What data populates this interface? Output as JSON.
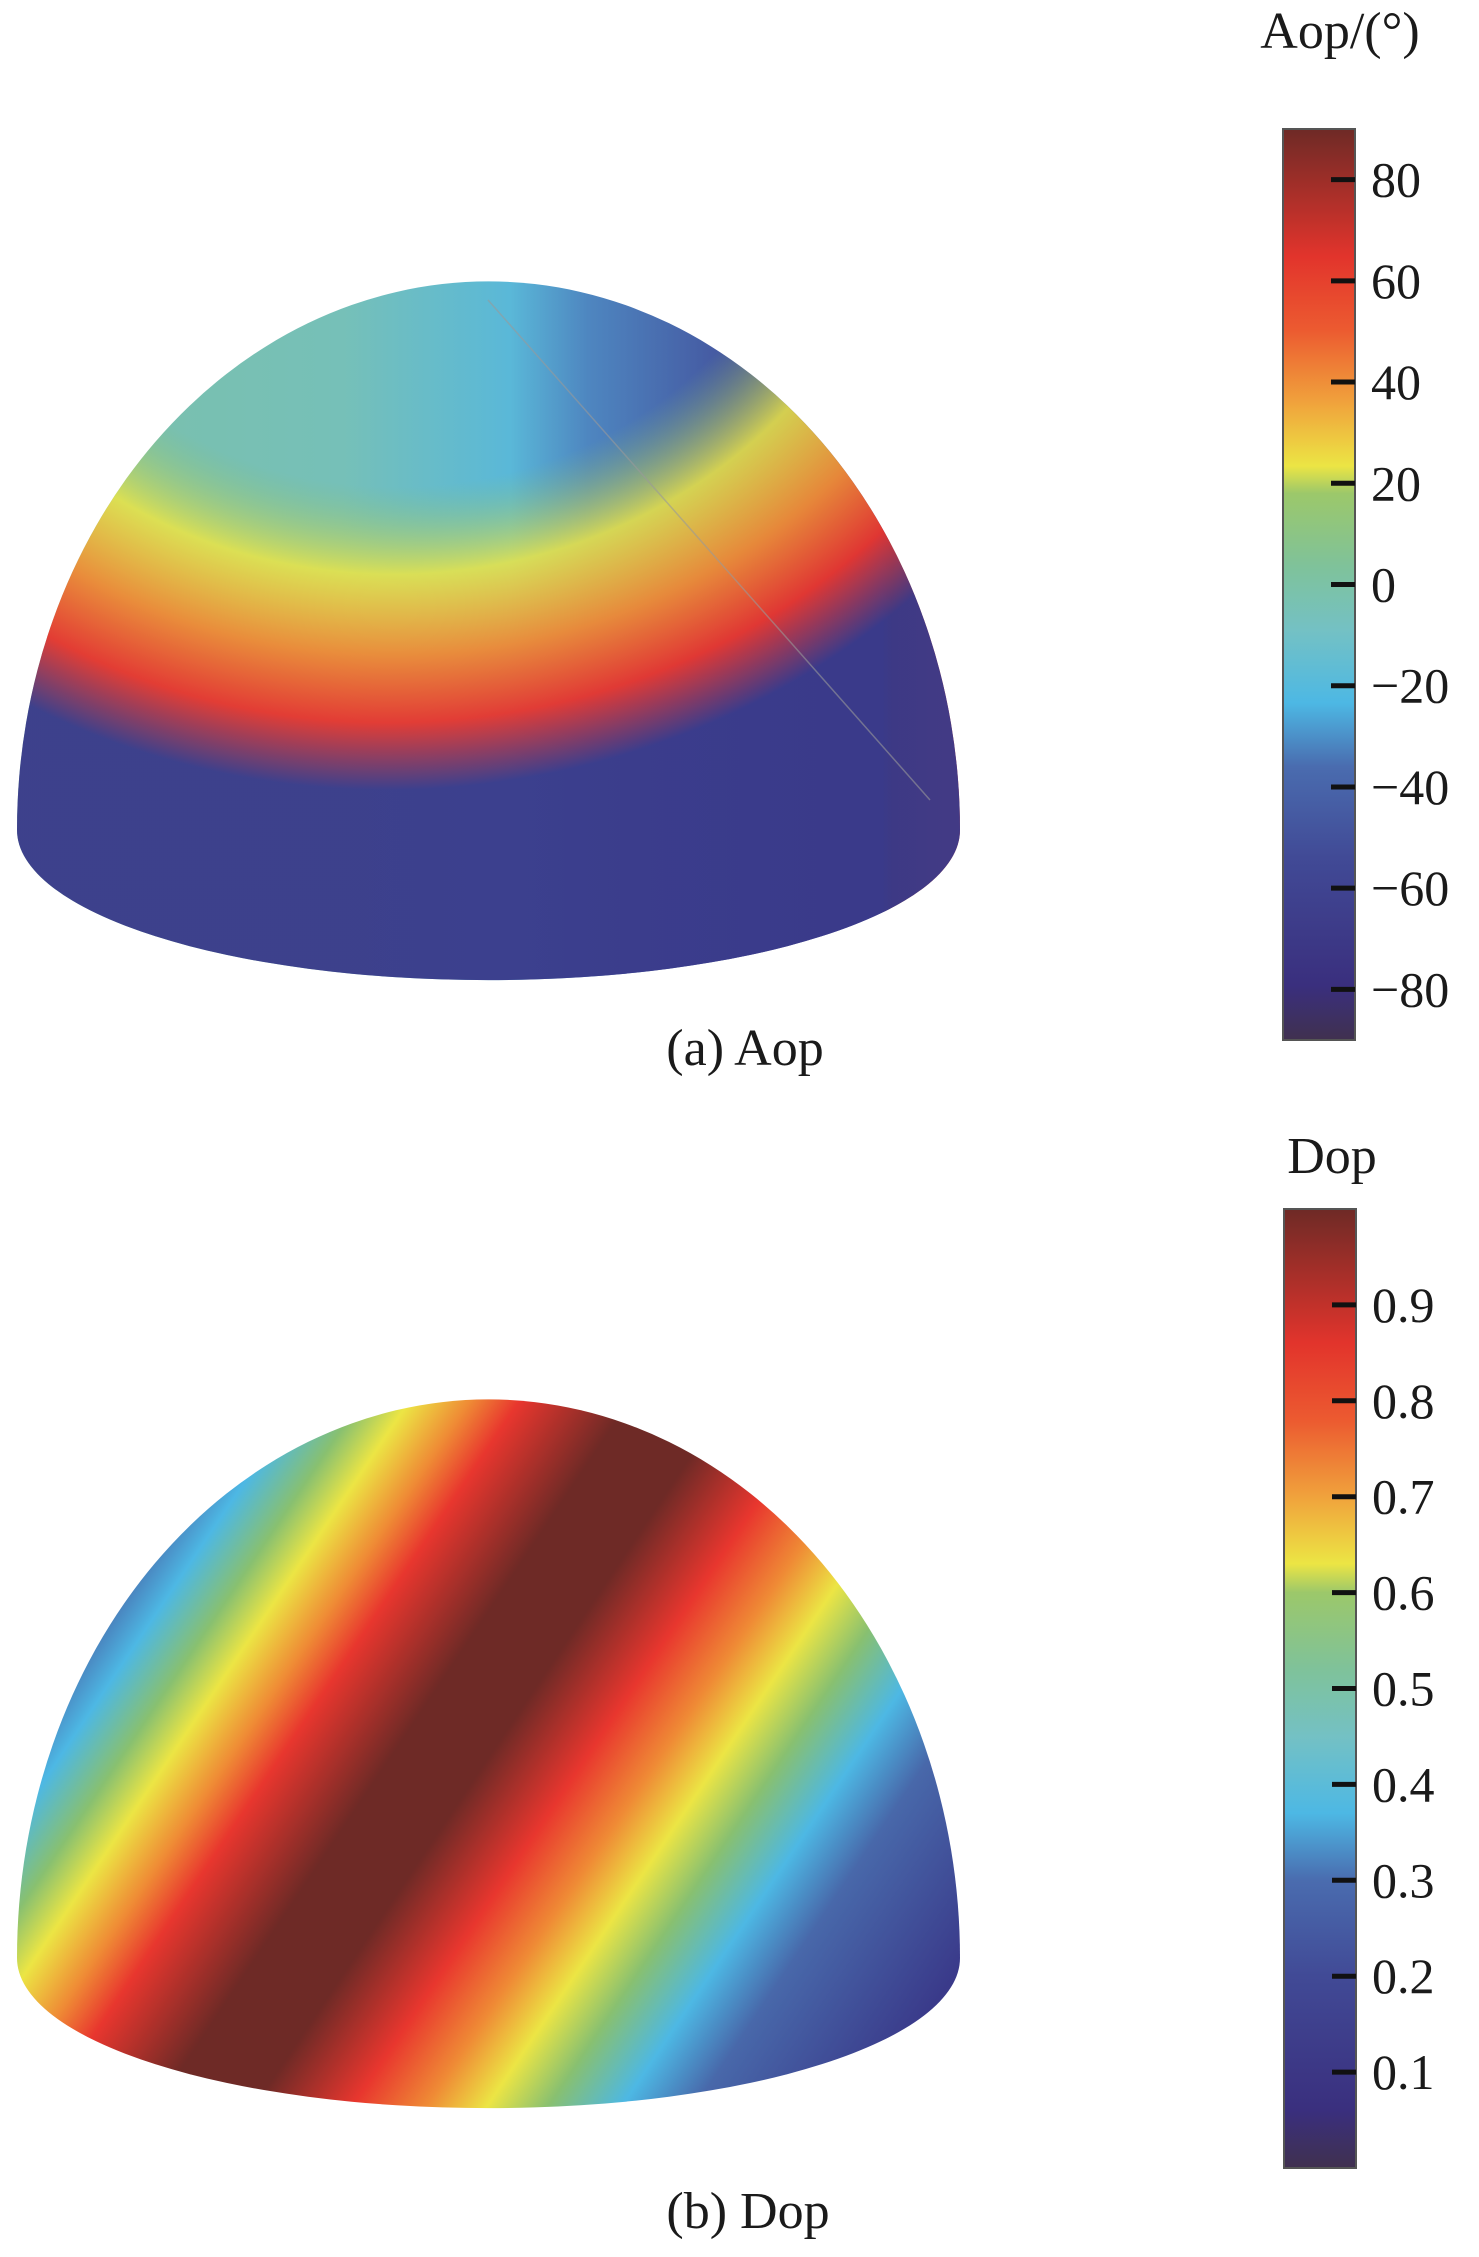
{
  "chart_data": [
    {
      "type": "heatmap",
      "surface": "hemisphere",
      "caption": "(a) Aop",
      "colorbar": {
        "title": "Aop/(°)",
        "range": [
          -90,
          90
        ],
        "ticks": [
          80,
          60,
          40,
          20,
          0,
          -20,
          -40,
          -60,
          -80
        ],
        "tick_labels": [
          "80",
          "60",
          "40",
          "20",
          "0",
          "−20",
          "−40",
          "−60",
          "−80"
        ]
      }
    },
    {
      "type": "heatmap",
      "surface": "hemisphere",
      "caption": "(b) Dop",
      "colorbar": {
        "title": "Dop",
        "range": [
          0,
          1
        ],
        "ticks": [
          0.9,
          0.8,
          0.7,
          0.6,
          0.5,
          0.4,
          0.3,
          0.2,
          0.1
        ],
        "tick_labels": [
          "0.9",
          "0.8",
          "0.7",
          "0.6",
          "0.5",
          "0.4",
          "0.3",
          "0.2",
          "0.1"
        ]
      }
    }
  ],
  "colormap": [
    "#40304f",
    "#3a3a8a",
    "#4868aa",
    "#4db8e4",
    "#72c0b0",
    "#88c070",
    "#ece544",
    "#ef8a35",
    "#e8362e",
    "#6e2a26"
  ]
}
